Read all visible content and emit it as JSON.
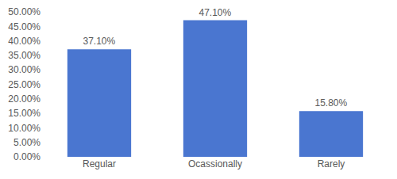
{
  "chart_data": {
    "type": "bar",
    "categories": [
      "Regular",
      "Ocassionally",
      "Rarely"
    ],
    "values": [
      37.1,
      47.1,
      15.8
    ],
    "value_labels": [
      "37.10%",
      "47.10%",
      "15.80%"
    ],
    "color": "#4a76d0",
    "ylim": [
      0,
      50
    ],
    "yticks": [
      {
        "value": 0,
        "label": "0.00%"
      },
      {
        "value": 5,
        "label": "5.00%"
      },
      {
        "value": 10,
        "label": "10.00%"
      },
      {
        "value": 15,
        "label": "15.00%"
      },
      {
        "value": 20,
        "label": "20.00%"
      },
      {
        "value": 25,
        "label": "25.00%"
      },
      {
        "value": 30,
        "label": "30.00%"
      },
      {
        "value": 35,
        "label": "35.00%"
      },
      {
        "value": 40,
        "label": "40.00%"
      },
      {
        "value": 45,
        "label": "45.00%"
      },
      {
        "value": 50,
        "label": "50.00%"
      }
    ],
    "grid": false,
    "data_labels": true
  }
}
